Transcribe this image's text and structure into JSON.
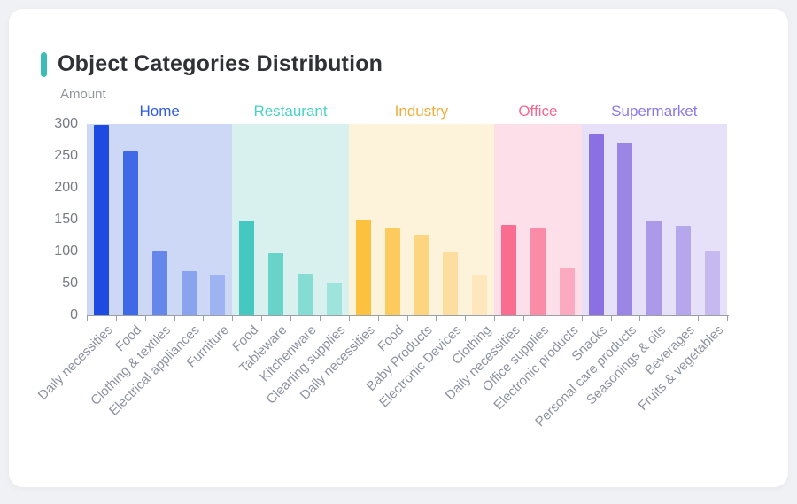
{
  "page": {
    "title": "Object Categories Distribution",
    "accent_color": "#3cbdb4",
    "card_background": "#ffffff",
    "page_background": "#f0f1f4"
  },
  "chart_data": {
    "type": "bar",
    "title": "Object Categories Distribution",
    "xlabel": "",
    "ylabel": "Amount",
    "ylim": [
      0,
      300
    ],
    "yticks": [
      0,
      50,
      100,
      150,
      200,
      250,
      300
    ],
    "grid": false,
    "legend_position": "none",
    "groups": [
      {
        "name": "Home",
        "label_color": "#2f5ce5",
        "band_color": "#ccd8f5",
        "bars": [
          {
            "label": "Daily necessities",
            "value": 298,
            "color": "#1d4be1"
          },
          {
            "label": "Food",
            "value": 257,
            "color": "#3f69e7"
          },
          {
            "label": "Clothing & textiles",
            "value": 102,
            "color": "#6587ea"
          },
          {
            "label": "Electrical appliances",
            "value": 69,
            "color": "#89a3ef"
          },
          {
            "label": "Furniture",
            "value": 64,
            "color": "#9eb4f2"
          }
        ]
      },
      {
        "name": "Restaurant",
        "label_color": "#4ad1c3",
        "band_color": "#d9f1ee",
        "bars": [
          {
            "label": "Food",
            "value": 148,
            "color": "#45c8c0"
          },
          {
            "label": "Tableware",
            "value": 97,
            "color": "#67d3c9"
          },
          {
            "label": "Kitchenware",
            "value": 65,
            "color": "#84dcd3"
          },
          {
            "label": "Cleaning supplies",
            "value": 51,
            "color": "#9fe4dc"
          }
        ]
      },
      {
        "name": "Industry",
        "label_color": "#efae3c",
        "band_color": "#fdf3da",
        "bars": [
          {
            "label": "Daily necessities",
            "value": 150,
            "color": "#fcc13e"
          },
          {
            "label": "Food",
            "value": 138,
            "color": "#fdca5e"
          },
          {
            "label": "Baby Products",
            "value": 126,
            "color": "#fdd47f"
          },
          {
            "label": "Electronic Devices",
            "value": 100,
            "color": "#fdde9e"
          },
          {
            "label": "Clothing",
            "value": 63,
            "color": "#fee7bc"
          }
        ]
      },
      {
        "name": "Office",
        "label_color": "#f8688f",
        "band_color": "#fcdfe8",
        "bars": [
          {
            "label": "Daily necessities",
            "value": 142,
            "color": "#f96e90"
          },
          {
            "label": "Office supplies",
            "value": 138,
            "color": "#fa8ca8"
          },
          {
            "label": "Electronic products",
            "value": 75,
            "color": "#fbaac0"
          }
        ]
      },
      {
        "name": "Supermarket",
        "label_color": "#8b79e8",
        "band_color": "#e6e0f8",
        "bars": [
          {
            "label": "Snacks",
            "value": 285,
            "color": "#8a70e0"
          },
          {
            "label": "Personal care products",
            "value": 271,
            "color": "#9c86e5"
          },
          {
            "label": "Seasonings & oils",
            "value": 148,
            "color": "#ac9ae9"
          },
          {
            "label": "Beverages",
            "value": 140,
            "color": "#b6a7ec"
          },
          {
            "label": "Fruits & vegetables",
            "value": 101,
            "color": "#c5b9f0"
          }
        ]
      }
    ]
  }
}
